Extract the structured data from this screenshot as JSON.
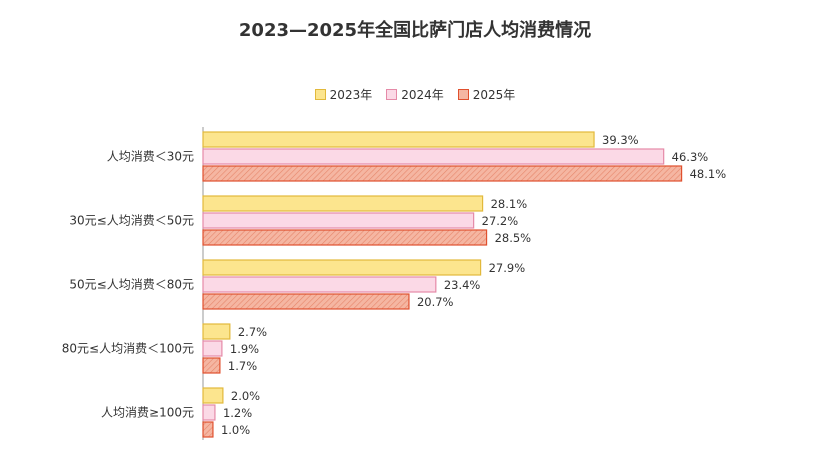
{
  "chart_data": {
    "type": "bar",
    "orientation": "horizontal",
    "title": "2023—2025年全国比萨门店人均消费情况",
    "categories": [
      "人均消费＜30元",
      "30元≤人均消费＜50元",
      "50元≤人均消费＜80元",
      "80元≤人均消费＜100元",
      "人均消费≥100元"
    ],
    "series": [
      {
        "name": "2023年",
        "values": [
          39.3,
          28.1,
          27.9,
          2.7,
          2.0
        ],
        "labels": [
          "39.3%",
          "28.1%",
          "27.9%",
          "2.7%",
          "2.0%"
        ],
        "fill": "#fce58e",
        "stroke": "#e2b93b"
      },
      {
        "name": "2024年",
        "values": [
          46.3,
          27.2,
          23.4,
          1.9,
          1.2
        ],
        "labels": [
          "46.3%",
          "27.2%",
          "23.4%",
          "1.9%",
          "1.2%"
        ],
        "fill": "#fbd9e6",
        "stroke": "#e58aa8"
      },
      {
        "name": "2025年",
        "values": [
          48.1,
          28.5,
          20.7,
          1.7,
          1.0
        ],
        "labels": [
          "48.1%",
          "28.5%",
          "20.7%",
          "1.7%",
          "1.0%"
        ],
        "fill": "#f5b6a2",
        "stroke": "#e0502e"
      }
    ],
    "xlim": [
      0,
      50
    ],
    "unit": "%",
    "legend_position": "top-center",
    "grid": false
  }
}
